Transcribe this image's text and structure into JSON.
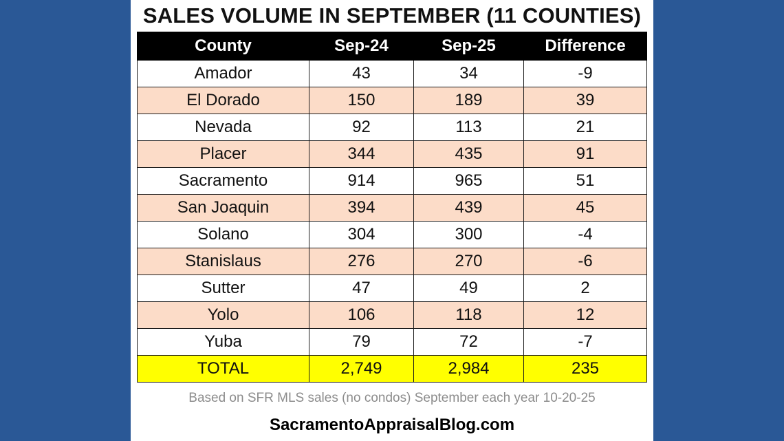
{
  "colors": {
    "background": "#2a5896",
    "header": "#000000",
    "row_alt": "#fcdcc8",
    "total_row": "#ffff00",
    "note_text": "#8c8c8c"
  },
  "chart_data": {
    "type": "table",
    "title": "SALES VOLUME IN SEPTEMBER (11 COUNTIES)",
    "columns": [
      "County",
      "Sep-24",
      "Sep-25",
      "Difference"
    ],
    "rows": [
      [
        "Amador",
        "43",
        "34",
        "-9"
      ],
      [
        "El Dorado",
        "150",
        "189",
        "39"
      ],
      [
        "Nevada",
        "92",
        "113",
        "21"
      ],
      [
        "Placer",
        "344",
        "435",
        "91"
      ],
      [
        "Sacramento",
        "914",
        "965",
        "51"
      ],
      [
        "San Joaquin",
        "394",
        "439",
        "45"
      ],
      [
        "Solano",
        "304",
        "300",
        "-4"
      ],
      [
        "Stanislaus",
        "276",
        "270",
        "-6"
      ],
      [
        "Sutter",
        "47",
        "49",
        "2"
      ],
      [
        "Yolo",
        "106",
        "118",
        "12"
      ],
      [
        "Yuba",
        "79",
        "72",
        "-7"
      ]
    ],
    "total": [
      "TOTAL",
      "2,749",
      "2,984",
      "235"
    ]
  },
  "footer": {
    "note": "Based on SFR MLS sales (no condos) September each year 10-20-25",
    "site": "SacramentoAppraisalBlog.com"
  }
}
